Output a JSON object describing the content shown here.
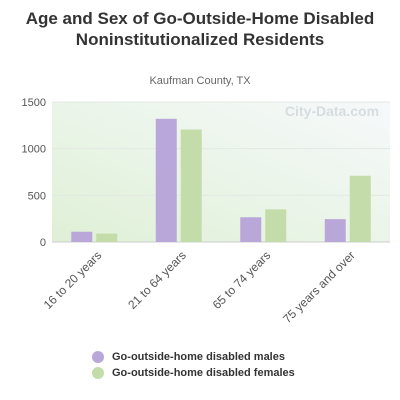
{
  "chart_data": {
    "type": "bar",
    "title": "Age and Sex of Go-Outside-Home Disabled Noninstitutionalized Residents",
    "subtitle": "Kaufman County, TX",
    "watermark": "City-Data.com",
    "categories": [
      "16 to 20 years",
      "21 to 64 years",
      "65 to 74 years",
      "75 years and over"
    ],
    "series": [
      {
        "name": "Go-outside-home disabled males",
        "color": "#b9a7d9",
        "values": [
          110,
          1320,
          265,
          245
        ]
      },
      {
        "name": "Go-outside-home disabled females",
        "color": "#c4dca9",
        "values": [
          90,
          1205,
          350,
          710
        ]
      }
    ],
    "yticks": [
      0,
      500,
      1000,
      1500
    ],
    "ylim": [
      0,
      1500
    ],
    "legend_position": "bottom",
    "grid": true
  }
}
